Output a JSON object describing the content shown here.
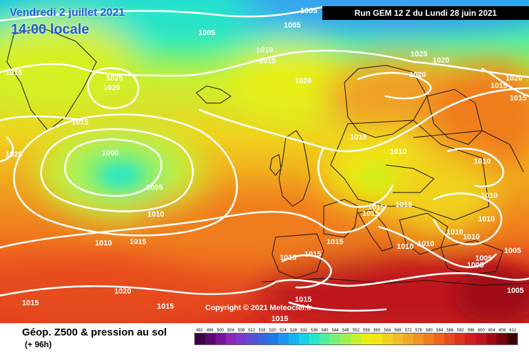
{
  "header": {
    "date_line": "Vendredi 2 juillet 2021",
    "time_line": "14:00 locale",
    "run_info": "Run GEM 12 Z du Lundi 28 juin 2021"
  },
  "copyright": "Copyright © 2021 Meteociel.fr",
  "legend": {
    "title": "Géop. Z500 & pression au sol",
    "subtitle": "(+ 96h)",
    "scale_values": [
      "492",
      "496",
      "500",
      "504",
      "508",
      "512",
      "516",
      "520",
      "524",
      "528",
      "532",
      "536",
      "540",
      "544",
      "548",
      "552",
      "556",
      "560",
      "564",
      "568",
      "572",
      "576",
      "580",
      "584",
      "588",
      "592",
      "596",
      "600",
      "604",
      "608",
      "612"
    ],
    "scale_colors": [
      "#3c0046",
      "#5a0a6e",
      "#78149a",
      "#8c28b4",
      "#7a3cc8",
      "#5a50d2",
      "#3c64dc",
      "#1e78e6",
      "#1e96f0",
      "#14b4f0",
      "#14d2e6",
      "#28e6c8",
      "#50f0a0",
      "#78f078",
      "#a0f050",
      "#c8f032",
      "#e6f014",
      "#f0e614",
      "#f0d21e",
      "#f0be28",
      "#f0aa28",
      "#f09628",
      "#f07d1e",
      "#f0641e",
      "#e64b1e",
      "#dc321e",
      "#d21e1e",
      "#be141e",
      "#a00a14",
      "#78000a",
      "#3c0000"
    ],
    "colors": {
      "text": "#000000",
      "header_text": "#1e5bd7",
      "run_box": "#000000",
      "isobar": "#ffffff"
    }
  },
  "isobar_labels": [
    {
      "text": "1005"
    },
    {
      "text": "1005"
    },
    {
      "text": "1005"
    },
    {
      "text": "1010"
    },
    {
      "text": "1015"
    },
    {
      "text": "1015"
    },
    {
      "text": "1025"
    },
    {
      "text": "1020"
    },
    {
      "text": "1015"
    },
    {
      "text": "1020"
    },
    {
      "text": "1000"
    },
    {
      "text": "1005"
    },
    {
      "text": "1010"
    },
    {
      "text": "1010"
    },
    {
      "text": "1015"
    },
    {
      "text": "1020"
    },
    {
      "text": "1025"
    },
    {
      "text": "1020"
    },
    {
      "text": "1020"
    },
    {
      "text": "1020"
    },
    {
      "text": "1015"
    },
    {
      "text": "1015"
    },
    {
      "text": "1015"
    },
    {
      "text": "1010"
    },
    {
      "text": "1010"
    },
    {
      "text": "1010"
    },
    {
      "text": "1015"
    },
    {
      "text": "1015"
    },
    {
      "text": "1015"
    },
    {
      "text": "1015"
    },
    {
      "text": "1015"
    },
    {
      "text": "1010"
    },
    {
      "text": "1010"
    },
    {
      "text": "1010"
    },
    {
      "text": "1010"
    },
    {
      "text": "1010"
    },
    {
      "text": "1005"
    },
    {
      "text": "1005"
    },
    {
      "text": "1005"
    },
    {
      "text": "1015"
    },
    {
      "text": "1015"
    },
    {
      "text": "1015"
    },
    {
      "text": "1020"
    },
    {
      "text": "1015"
    },
    {
      "text": "1015"
    },
    {
      "text": "1005"
    }
  ]
}
